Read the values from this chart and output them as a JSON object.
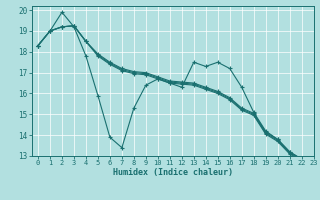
{
  "xlabel": "Humidex (Indice chaleur)",
  "bg_color": "#b2e0e0",
  "grid_color": "#ffffff",
  "line_color": "#1a7070",
  "xlim": [
    -0.5,
    23
  ],
  "ylim": [
    13,
    20.2
  ],
  "yticks": [
    13,
    14,
    15,
    16,
    17,
    18,
    19,
    20
  ],
  "xticks": [
    0,
    1,
    2,
    3,
    4,
    5,
    6,
    7,
    8,
    9,
    10,
    11,
    12,
    13,
    14,
    15,
    16,
    17,
    18,
    19,
    20,
    21,
    22,
    23
  ],
  "line_wiggly": [
    18.3,
    19.0,
    19.9,
    19.2,
    17.8,
    15.9,
    13.9,
    13.4,
    15.3,
    16.4,
    16.7,
    16.5,
    16.3,
    17.5,
    17.3,
    17.5,
    17.2,
    16.3,
    15.1,
    14.2,
    13.8,
    13.2,
    12.85,
    12.85
  ],
  "line_smooth1": [
    18.3,
    19.0,
    19.2,
    19.25,
    18.5,
    17.9,
    17.5,
    17.2,
    17.05,
    17.0,
    16.8,
    16.6,
    16.55,
    16.5,
    16.3,
    16.1,
    15.8,
    15.3,
    15.05,
    14.15,
    13.8,
    13.2,
    12.85,
    12.85
  ],
  "line_smooth2": [
    18.3,
    19.0,
    19.2,
    19.25,
    18.5,
    17.85,
    17.45,
    17.15,
    17.0,
    16.95,
    16.75,
    16.55,
    16.5,
    16.45,
    16.25,
    16.05,
    15.75,
    15.25,
    15.0,
    14.1,
    13.75,
    13.15,
    12.8,
    12.8
  ],
  "line_smooth3": [
    18.3,
    19.0,
    19.2,
    19.25,
    18.5,
    17.8,
    17.4,
    17.1,
    16.95,
    16.9,
    16.7,
    16.5,
    16.45,
    16.4,
    16.2,
    16.0,
    15.7,
    15.2,
    14.95,
    14.05,
    13.7,
    13.1,
    12.75,
    12.75
  ]
}
